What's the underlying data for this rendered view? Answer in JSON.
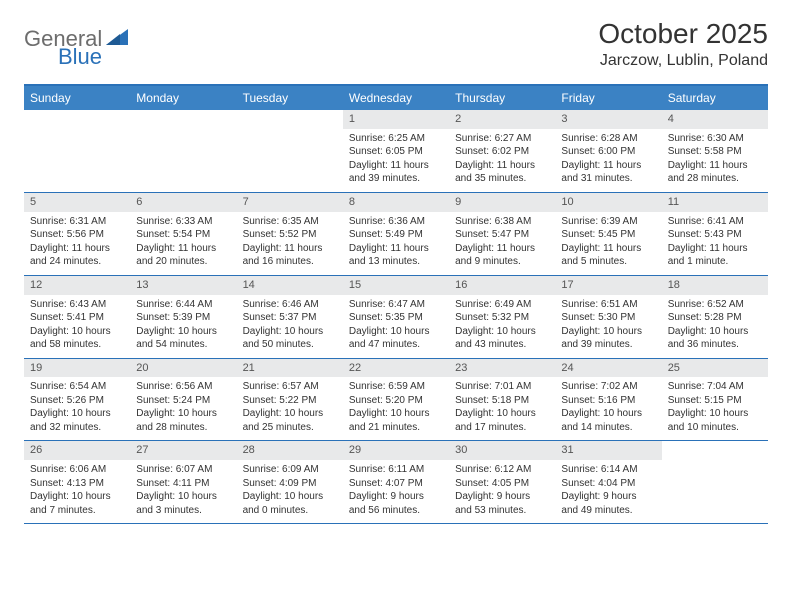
{
  "logo": {
    "general": "General",
    "blue": "Blue"
  },
  "title": "October 2025",
  "location": "Jarczow, Lublin, Poland",
  "colors": {
    "header_blue": "#3b82c4",
    "border_blue": "#2a71b8",
    "daynum_bg": "#e8e9ea",
    "text": "#333333",
    "logo_gray": "#6d6d6d"
  },
  "weekday_labels": [
    "Sunday",
    "Monday",
    "Tuesday",
    "Wednesday",
    "Thursday",
    "Friday",
    "Saturday"
  ],
  "weeks": [
    [
      {
        "n": "",
        "sr": "",
        "ss": "",
        "dl": ""
      },
      {
        "n": "",
        "sr": "",
        "ss": "",
        "dl": ""
      },
      {
        "n": "",
        "sr": "",
        "ss": "",
        "dl": ""
      },
      {
        "n": "1",
        "sr": "Sunrise: 6:25 AM",
        "ss": "Sunset: 6:05 PM",
        "dl": "Daylight: 11 hours and 39 minutes."
      },
      {
        "n": "2",
        "sr": "Sunrise: 6:27 AM",
        "ss": "Sunset: 6:02 PM",
        "dl": "Daylight: 11 hours and 35 minutes."
      },
      {
        "n": "3",
        "sr": "Sunrise: 6:28 AM",
        "ss": "Sunset: 6:00 PM",
        "dl": "Daylight: 11 hours and 31 minutes."
      },
      {
        "n": "4",
        "sr": "Sunrise: 6:30 AM",
        "ss": "Sunset: 5:58 PM",
        "dl": "Daylight: 11 hours and 28 minutes."
      }
    ],
    [
      {
        "n": "5",
        "sr": "Sunrise: 6:31 AM",
        "ss": "Sunset: 5:56 PM",
        "dl": "Daylight: 11 hours and 24 minutes."
      },
      {
        "n": "6",
        "sr": "Sunrise: 6:33 AM",
        "ss": "Sunset: 5:54 PM",
        "dl": "Daylight: 11 hours and 20 minutes."
      },
      {
        "n": "7",
        "sr": "Sunrise: 6:35 AM",
        "ss": "Sunset: 5:52 PM",
        "dl": "Daylight: 11 hours and 16 minutes."
      },
      {
        "n": "8",
        "sr": "Sunrise: 6:36 AM",
        "ss": "Sunset: 5:49 PM",
        "dl": "Daylight: 11 hours and 13 minutes."
      },
      {
        "n": "9",
        "sr": "Sunrise: 6:38 AM",
        "ss": "Sunset: 5:47 PM",
        "dl": "Daylight: 11 hours and 9 minutes."
      },
      {
        "n": "10",
        "sr": "Sunrise: 6:39 AM",
        "ss": "Sunset: 5:45 PM",
        "dl": "Daylight: 11 hours and 5 minutes."
      },
      {
        "n": "11",
        "sr": "Sunrise: 6:41 AM",
        "ss": "Sunset: 5:43 PM",
        "dl": "Daylight: 11 hours and 1 minute."
      }
    ],
    [
      {
        "n": "12",
        "sr": "Sunrise: 6:43 AM",
        "ss": "Sunset: 5:41 PM",
        "dl": "Daylight: 10 hours and 58 minutes."
      },
      {
        "n": "13",
        "sr": "Sunrise: 6:44 AM",
        "ss": "Sunset: 5:39 PM",
        "dl": "Daylight: 10 hours and 54 minutes."
      },
      {
        "n": "14",
        "sr": "Sunrise: 6:46 AM",
        "ss": "Sunset: 5:37 PM",
        "dl": "Daylight: 10 hours and 50 minutes."
      },
      {
        "n": "15",
        "sr": "Sunrise: 6:47 AM",
        "ss": "Sunset: 5:35 PM",
        "dl": "Daylight: 10 hours and 47 minutes."
      },
      {
        "n": "16",
        "sr": "Sunrise: 6:49 AM",
        "ss": "Sunset: 5:32 PM",
        "dl": "Daylight: 10 hours and 43 minutes."
      },
      {
        "n": "17",
        "sr": "Sunrise: 6:51 AM",
        "ss": "Sunset: 5:30 PM",
        "dl": "Daylight: 10 hours and 39 minutes."
      },
      {
        "n": "18",
        "sr": "Sunrise: 6:52 AM",
        "ss": "Sunset: 5:28 PM",
        "dl": "Daylight: 10 hours and 36 minutes."
      }
    ],
    [
      {
        "n": "19",
        "sr": "Sunrise: 6:54 AM",
        "ss": "Sunset: 5:26 PM",
        "dl": "Daylight: 10 hours and 32 minutes."
      },
      {
        "n": "20",
        "sr": "Sunrise: 6:56 AM",
        "ss": "Sunset: 5:24 PM",
        "dl": "Daylight: 10 hours and 28 minutes."
      },
      {
        "n": "21",
        "sr": "Sunrise: 6:57 AM",
        "ss": "Sunset: 5:22 PM",
        "dl": "Daylight: 10 hours and 25 minutes."
      },
      {
        "n": "22",
        "sr": "Sunrise: 6:59 AM",
        "ss": "Sunset: 5:20 PM",
        "dl": "Daylight: 10 hours and 21 minutes."
      },
      {
        "n": "23",
        "sr": "Sunrise: 7:01 AM",
        "ss": "Sunset: 5:18 PM",
        "dl": "Daylight: 10 hours and 17 minutes."
      },
      {
        "n": "24",
        "sr": "Sunrise: 7:02 AM",
        "ss": "Sunset: 5:16 PM",
        "dl": "Daylight: 10 hours and 14 minutes."
      },
      {
        "n": "25",
        "sr": "Sunrise: 7:04 AM",
        "ss": "Sunset: 5:15 PM",
        "dl": "Daylight: 10 hours and 10 minutes."
      }
    ],
    [
      {
        "n": "26",
        "sr": "Sunrise: 6:06 AM",
        "ss": "Sunset: 4:13 PM",
        "dl": "Daylight: 10 hours and 7 minutes."
      },
      {
        "n": "27",
        "sr": "Sunrise: 6:07 AM",
        "ss": "Sunset: 4:11 PM",
        "dl": "Daylight: 10 hours and 3 minutes."
      },
      {
        "n": "28",
        "sr": "Sunrise: 6:09 AM",
        "ss": "Sunset: 4:09 PM",
        "dl": "Daylight: 10 hours and 0 minutes."
      },
      {
        "n": "29",
        "sr": "Sunrise: 6:11 AM",
        "ss": "Sunset: 4:07 PM",
        "dl": "Daylight: 9 hours and 56 minutes."
      },
      {
        "n": "30",
        "sr": "Sunrise: 6:12 AM",
        "ss": "Sunset: 4:05 PM",
        "dl": "Daylight: 9 hours and 53 minutes."
      },
      {
        "n": "31",
        "sr": "Sunrise: 6:14 AM",
        "ss": "Sunset: 4:04 PM",
        "dl": "Daylight: 9 hours and 49 minutes."
      },
      {
        "n": "",
        "sr": "",
        "ss": "",
        "dl": ""
      }
    ]
  ]
}
